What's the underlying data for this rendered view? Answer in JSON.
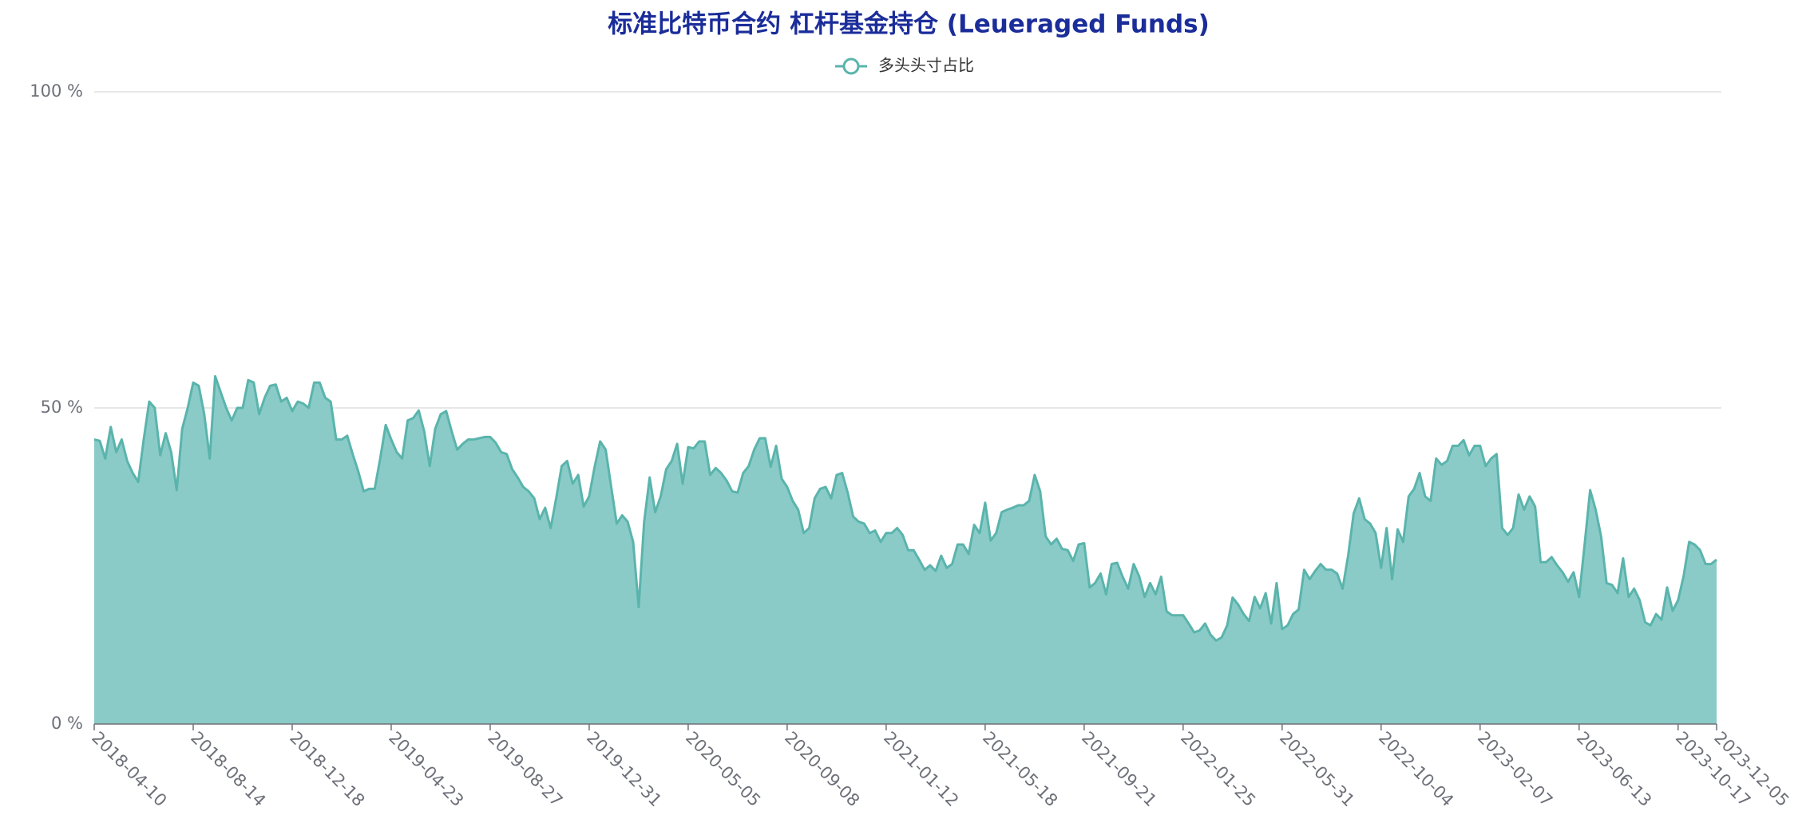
{
  "chart_data": {
    "type": "area",
    "title": "标准比特币合约 杠杆基金持仓 (Leueraged Funds)",
    "categories": [
      "2018-04-10",
      null,
      null,
      null,
      null,
      null,
      null,
      null,
      null,
      null,
      null,
      null,
      null,
      null,
      null,
      null,
      null,
      null,
      "2018-08-14",
      null,
      null,
      null,
      null,
      null,
      null,
      null,
      null,
      null,
      null,
      null,
      null,
      null,
      null,
      null,
      null,
      null,
      "2018-12-18",
      null,
      null,
      null,
      null,
      null,
      null,
      null,
      null,
      null,
      null,
      null,
      null,
      null,
      null,
      null,
      null,
      null,
      "2019-04-23",
      null,
      null,
      null,
      null,
      null,
      null,
      null,
      null,
      null,
      null,
      null,
      null,
      null,
      null,
      null,
      null,
      null,
      "2019-08-27",
      null,
      null,
      null,
      null,
      null,
      null,
      null,
      null,
      null,
      null,
      null,
      null,
      null,
      null,
      null,
      null,
      null,
      "2019-12-31",
      null,
      null,
      null,
      null,
      null,
      null,
      null,
      null,
      null,
      null,
      null,
      null,
      null,
      null,
      null,
      null,
      null,
      "2020-05-05",
      null,
      null,
      null,
      null,
      null,
      null,
      null,
      null,
      null,
      null,
      null,
      null,
      null,
      null,
      null,
      null,
      null,
      "2020-09-08",
      null,
      null,
      null,
      null,
      null,
      null,
      null,
      null,
      null,
      null,
      null,
      null,
      null,
      null,
      null,
      null,
      null,
      "2021-01-12",
      null,
      null,
      null,
      null,
      null,
      null,
      null,
      null,
      null,
      null,
      null,
      null,
      null,
      null,
      null,
      null,
      null,
      "2021-05-18",
      null,
      null,
      null,
      null,
      null,
      null,
      null,
      null,
      null,
      null,
      null,
      null,
      null,
      null,
      null,
      null,
      null,
      "2021-09-21",
      null,
      null,
      null,
      null,
      null,
      null,
      null,
      null,
      null,
      null,
      null,
      null,
      null,
      null,
      null,
      null,
      null,
      "2022-01-25",
      null,
      null,
      null,
      null,
      null,
      null,
      null,
      null,
      null,
      null,
      null,
      null,
      null,
      null,
      null,
      null,
      null,
      "2022-05-31",
      null,
      null,
      null,
      null,
      null,
      null,
      null,
      null,
      null,
      null,
      null,
      null,
      null,
      null,
      null,
      null,
      null,
      "2022-10-04",
      null,
      null,
      null,
      null,
      null,
      null,
      null,
      null,
      null,
      null,
      null,
      null,
      null,
      null,
      null,
      null,
      null,
      "2023-02-07",
      null,
      null,
      null,
      null,
      null,
      null,
      null,
      null,
      null,
      null,
      null,
      null,
      null,
      null,
      null,
      null,
      null,
      "2023-06-13",
      null,
      null,
      null,
      null,
      null,
      null,
      null,
      null,
      null,
      null,
      null,
      null,
      null,
      null,
      null,
      null,
      null,
      "2023-10-17",
      null,
      null,
      null,
      null,
      null,
      null,
      "2023-12-05"
    ],
    "series": [
      {
        "name": "多头头寸占比",
        "color": "#5ab4ac",
        "fill": "#8acbc8",
        "values": [
          45,
          44.8,
          42,
          47,
          43,
          45,
          41.6,
          39.7,
          38.3,
          45,
          51,
          50,
          42.5,
          46,
          43,
          37,
          46.7,
          50,
          54,
          53.5,
          49,
          42,
          55,
          52.5,
          50,
          48,
          50,
          50,
          54.4,
          54,
          49,
          51.6,
          53.5,
          53.7,
          51,
          51.6,
          49.5,
          51,
          50.7,
          50,
          54,
          54,
          51.6,
          51,
          45,
          45,
          45.6,
          42.7,
          40,
          36.8,
          37.2,
          37.2,
          42,
          47.3,
          45,
          43,
          42,
          48,
          48.4,
          49.6,
          46.3,
          40.8,
          46.7,
          49,
          49.5,
          46.3,
          43.4,
          44.3,
          45,
          45,
          45.2,
          45.4,
          45.4,
          44.5,
          43,
          42.7,
          40.3,
          39,
          37.5,
          36.8,
          35.7,
          32.4,
          34.2,
          31,
          35.7,
          40.8,
          41.6,
          38,
          39.4,
          34.4,
          36,
          40.7,
          44.7,
          43.4,
          37.5,
          31.7,
          33,
          32,
          28.8,
          18.5,
          32,
          39,
          33.5,
          36,
          40.3,
          41.6,
          44.3,
          38,
          43.8,
          43.6,
          44.7,
          44.7,
          39.4,
          40.5,
          39.7,
          38.5,
          36.8,
          36.6,
          39.7,
          40.8,
          43.4,
          45.2,
          45.2,
          40.7,
          44,
          38.8,
          37.5,
          35.3,
          33.9,
          30.2,
          31,
          35.7,
          37.2,
          37.5,
          35.7,
          39.4,
          39.7,
          36.6,
          32.8,
          32,
          31.7,
          30.2,
          30.6,
          28.8,
          30.2,
          30.2,
          31,
          29.9,
          27.5,
          27.5,
          26,
          24.4,
          25.1,
          24.2,
          26.6,
          24.7,
          25.3,
          28.4,
          28.4,
          26.9,
          31.5,
          30.2,
          35,
          29,
          30.2,
          33.5,
          33.9,
          34.2,
          34.6,
          34.6,
          35.3,
          39.4,
          36.8,
          29.7,
          28.4,
          29.3,
          27.7,
          27.5,
          25.8,
          28.4,
          28.6,
          21.6,
          22.3,
          23.8,
          20.5,
          25.3,
          25.5,
          23.3,
          21.4,
          25.3,
          23.4,
          20.1,
          22.3,
          20.5,
          23.3,
          17.8,
          17.2,
          17.2,
          17.2,
          15.9,
          14.5,
          14.8,
          15.9,
          14.1,
          13.2,
          13.7,
          15.6,
          20,
          18.9,
          17.4,
          16.3,
          20.1,
          18.3,
          20.7,
          15.9,
          22.3,
          15,
          15.6,
          17.4,
          18.1,
          24.4,
          22.9,
          24.2,
          25.3,
          24.4,
          24.4,
          23.8,
          21.4,
          26.6,
          33.3,
          35.7,
          32.4,
          31.7,
          30.2,
          24.7,
          31,
          22.9,
          30.8,
          28.8,
          36,
          37.2,
          39.7,
          36,
          35.3,
          42,
          41,
          41.6,
          44,
          44,
          44.9,
          42.5,
          44,
          44,
          40.8,
          42,
          42.7,
          31,
          29.9,
          31,
          36.3,
          33.9,
          36,
          34.4,
          25.6,
          25.6,
          26.4,
          25.1,
          24,
          22.5,
          24,
          20.1,
          28.4,
          37,
          33.9,
          29.7,
          22.3,
          22,
          20.7,
          26.2,
          20.1,
          21.4,
          19.6,
          16.1,
          15.6,
          17.4,
          16.5,
          21.6,
          17.9,
          19.6,
          23.4,
          28.8,
          28.4,
          27.5,
          25.3,
          25.3,
          26
        ]
      }
    ],
    "ylim": [
      0,
      100
    ],
    "yticks": [
      {
        "value": 0,
        "label": "0 %"
      },
      {
        "value": 50,
        "label": "50 %"
      },
      {
        "value": 100,
        "label": "100 %"
      }
    ],
    "grid": true
  }
}
